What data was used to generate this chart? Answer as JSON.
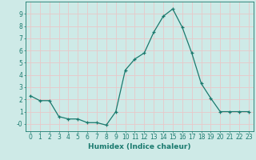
{
  "x": [
    0,
    1,
    2,
    3,
    4,
    5,
    6,
    7,
    8,
    9,
    10,
    11,
    12,
    13,
    14,
    15,
    16,
    17,
    18,
    19,
    20,
    21,
    22,
    23
  ],
  "y": [
    2.3,
    1.9,
    1.9,
    0.6,
    0.4,
    0.4,
    0.1,
    0.1,
    -0.1,
    1.0,
    4.4,
    5.3,
    5.8,
    7.5,
    8.8,
    9.4,
    7.9,
    5.8,
    3.3,
    2.1,
    1.0,
    1.0,
    1.0,
    1.0
  ],
  "line_color": "#1a7a6e",
  "marker": "+",
  "marker_size": 3,
  "xlabel": "Humidex (Indice chaleur)",
  "ylim": [
    -0.6,
    10.0
  ],
  "xlim": [
    -0.5,
    23.5
  ],
  "yticks": [
    0,
    1,
    2,
    3,
    4,
    5,
    6,
    7,
    8,
    9
  ],
  "ytick_labels": [
    "-0",
    "1",
    "2",
    "3",
    "4",
    "5",
    "6",
    "7",
    "8",
    "9"
  ],
  "xticks": [
    0,
    1,
    2,
    3,
    4,
    5,
    6,
    7,
    8,
    9,
    10,
    11,
    12,
    13,
    14,
    15,
    16,
    17,
    18,
    19,
    20,
    21,
    22,
    23
  ],
  "background_color": "#ceeae7",
  "grid_color": "#e8c8c8",
  "axis_color": "#1a7a6e",
  "tick_color": "#1a7a6e",
  "label_color": "#1a7a6e",
  "xlabel_fontsize": 6.5,
  "tick_fontsize": 5.5,
  "linewidth": 0.9,
  "markeredgewidth": 0.9
}
